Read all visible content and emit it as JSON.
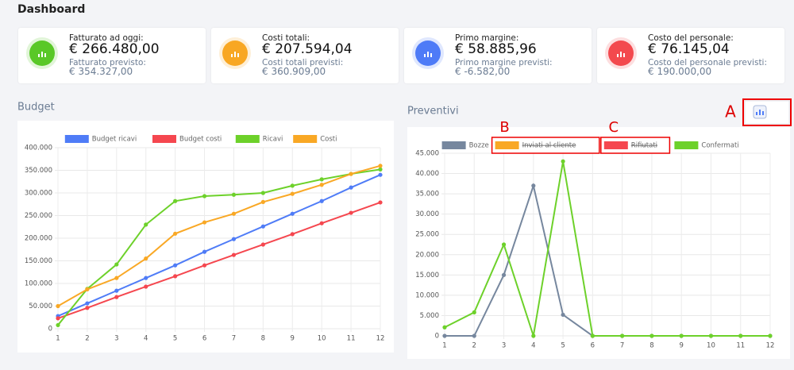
{
  "header": {
    "title": "Dashboard"
  },
  "kpis": [
    {
      "label": "Fatturato ad oggi:",
      "value": "€ 266.480,00",
      "sub_label": "Fatturato previsto:",
      "sub_value": "€ 354.327,00",
      "color": "#5ac828"
    },
    {
      "label": "Costi totali:",
      "value": "€ 207.594,04",
      "sub_label": "Costi totali previsti:",
      "sub_value": "€ 360.909,00",
      "color": "#f8a824"
    },
    {
      "label": "Primo margine:",
      "value": "€ 58.885,96",
      "sub_label": "Primo margine previsti:",
      "sub_value": "€ -6.582,00",
      "color": "#4f7cf7"
    },
    {
      "label": "Costo del personale:",
      "value": "€ 76.145,04",
      "sub_label": "Costo del personale previsti:",
      "sub_value": "€ 190.000,00",
      "color": "#f34a4f"
    }
  ],
  "chart_data": [
    {
      "type": "line",
      "title": "Budget",
      "categories": [
        "1",
        "2",
        "3",
        "4",
        "5",
        "6",
        "7",
        "8",
        "9",
        "10",
        "11",
        "12"
      ],
      "series": [
        {
          "name": "Budget ricavi",
          "color": "#4f7cf7",
          "values": [
            28000,
            56000,
            84000,
            112000,
            140000,
            170000,
            198000,
            226000,
            254000,
            282000,
            312000,
            340000
          ]
        },
        {
          "name": "Budget costi",
          "color": "#f5474f",
          "values": [
            23000,
            46000,
            70000,
            93000,
            116000,
            140000,
            163000,
            186000,
            209000,
            233000,
            256000,
            279000
          ]
        },
        {
          "name": "Ricavi",
          "color": "#6dd12a",
          "values": [
            8000,
            88000,
            142000,
            230000,
            282000,
            293000,
            296000,
            300000,
            316000,
            330000,
            342000,
            352000
          ]
        },
        {
          "name": "Costi",
          "color": "#f9a825",
          "values": [
            50000,
            87000,
            112000,
            155000,
            210000,
            235000,
            254000,
            280000,
            298000,
            318000,
            342000,
            360000
          ]
        }
      ],
      "ylim": [
        0,
        400000
      ],
      "yticks": [
        0,
        {
          "value": 50000,
          "label": "50.000"
        },
        {
          "value": 100000,
          "label": "100.000"
        },
        {
          "value": 150000,
          "label": "150.000"
        },
        {
          "value": 200000,
          "label": "200.000"
        },
        {
          "value": 250000,
          "label": "250.000"
        },
        {
          "value": 300000,
          "label": "300.000"
        },
        {
          "value": 350000,
          "label": "350.000"
        },
        {
          "value": 400000,
          "label": "400.000"
        }
      ],
      "grid": true,
      "legend": "top"
    },
    {
      "type": "line",
      "title": "Preventivi",
      "categories": [
        "1",
        "2",
        "3",
        "4",
        "5",
        "6",
        "7",
        "8",
        "9",
        "10",
        "11",
        "12"
      ],
      "series": [
        {
          "name": "Bozze",
          "color": "#76879e",
          "values": [
            0,
            0,
            15000,
            37000,
            5200,
            0,
            0,
            0,
            0,
            0,
            0,
            0
          ]
        },
        {
          "name": "Inviati al cliente",
          "color": "#f9a825",
          "hidden": true
        },
        {
          "name": "Rifiutati",
          "color": "#f5474f",
          "hidden": true
        },
        {
          "name": "Confermati",
          "color": "#6dd12a",
          "values": [
            2100,
            5800,
            22500,
            0,
            43000,
            0,
            0,
            0,
            0,
            0,
            0,
            0
          ]
        }
      ],
      "ylim": [
        0,
        45000
      ],
      "yticks": [
        0,
        {
          "value": 5000,
          "label": "5.000"
        },
        {
          "value": 10000,
          "label": "10.000"
        },
        {
          "value": 15000,
          "label": "15.000"
        },
        {
          "value": 20000,
          "label": "20.000"
        },
        {
          "value": 25000,
          "label": "25.000"
        },
        {
          "value": 30000,
          "label": "30.000"
        },
        {
          "value": 35000,
          "label": "35.000"
        },
        {
          "value": 40000,
          "label": "40.000"
        },
        {
          "value": 45000,
          "label": "45.000"
        }
      ],
      "grid": true,
      "legend": "top"
    }
  ],
  "annotations": [
    "A",
    "B",
    "C"
  ]
}
